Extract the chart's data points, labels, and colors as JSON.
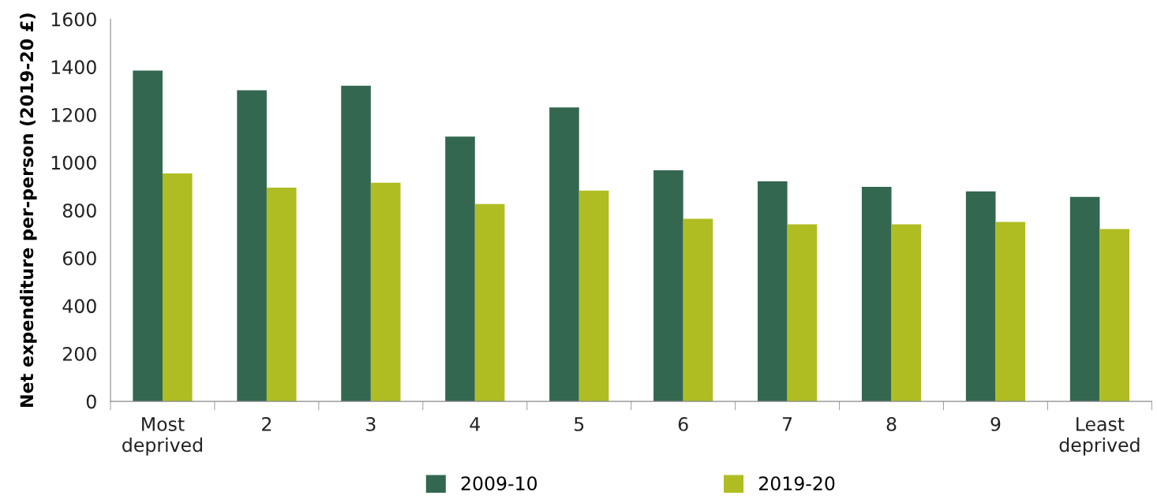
{
  "chart_data": {
    "type": "bar",
    "ylabel": "Net expenditure per-person (2019-20 £)",
    "categories": [
      "Most\ndeprived",
      "2",
      "3",
      "4",
      "5",
      "6",
      "7",
      "8",
      "9",
      "Least\ndeprived"
    ],
    "series": [
      {
        "name": "2009-10",
        "color": "#336750",
        "values": [
          1385,
          1302,
          1321,
          1108,
          1230,
          967,
          921,
          898,
          879,
          856
        ]
      },
      {
        "name": "2019-20",
        "color": "#afbd22",
        "values": [
          954,
          895,
          915,
          826,
          882,
          764,
          741,
          741,
          751,
          721
        ]
      }
    ],
    "ylim": [
      0,
      1600
    ],
    "yticks": [
      0,
      200,
      400,
      600,
      800,
      1000,
      1200,
      1400,
      1600
    ],
    "grid": false,
    "legend": "bottom"
  }
}
